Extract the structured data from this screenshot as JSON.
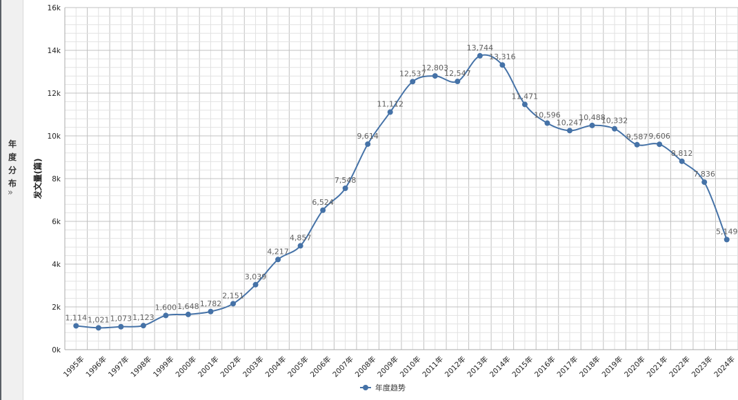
{
  "sidebar": {
    "title_chars": [
      "年",
      "度",
      "分",
      "布"
    ],
    "expand_glyph": "»"
  },
  "chart_data": {
    "type": "line",
    "title": "",
    "xlabel": "",
    "ylabel": "发文量(篇)",
    "categories": [
      "1995年",
      "1996年",
      "1997年",
      "1998年",
      "1999年",
      "2000年",
      "2001年",
      "2002年",
      "2003年",
      "2004年",
      "2005年",
      "2006年",
      "2007年",
      "2008年",
      "2009年",
      "2010年",
      "2011年",
      "2012年",
      "2013年",
      "2014年",
      "2015年",
      "2016年",
      "2017年",
      "2018年",
      "2019年",
      "2020年",
      "2021年",
      "2022年",
      "2023年",
      "2024年"
    ],
    "series": [
      {
        "name": "年度趋势",
        "values": [
          1114,
          1021,
          1073,
          1123,
          1600,
          1648,
          1782,
          2151,
          3039,
          4217,
          4857,
          6524,
          7548,
          9614,
          11112,
          12537,
          12803,
          12547,
          13744,
          13316,
          11471,
          10596,
          10247,
          10488,
          10332,
          9587,
          9606,
          8812,
          7836,
          5149
        ]
      }
    ],
    "data_labels": [
      "1,114",
      "1,021",
      "1,073",
      "1,123",
      "1,600",
      "1,648",
      "1,782",
      "2,151",
      "3,039",
      "4,217",
      "4,857",
      "6,524",
      "7,548",
      "9,614",
      "11,112",
      "12,537",
      "12,803",
      "12,547",
      "13,744",
      "13,316",
      "11,471",
      "10,596",
      "10,247",
      "10,488",
      "10,332",
      "9,587",
      "9,606",
      "8,812",
      "7,836",
      "5,149"
    ],
    "ylim": [
      0,
      16000
    ],
    "yticks": [
      0,
      2000,
      4000,
      6000,
      8000,
      10000,
      12000,
      14000,
      16000
    ],
    "ytick_labels": [
      "0k",
      "2k",
      "4k",
      "6k",
      "8k",
      "10k",
      "12k",
      "14k",
      "16k"
    ],
    "grid": true,
    "legend": "bottom-center",
    "colors": {
      "line": "#4572a7",
      "grid": "#c0c0c0",
      "minor_grid": "#e2e2e2",
      "label": "#606060"
    }
  }
}
